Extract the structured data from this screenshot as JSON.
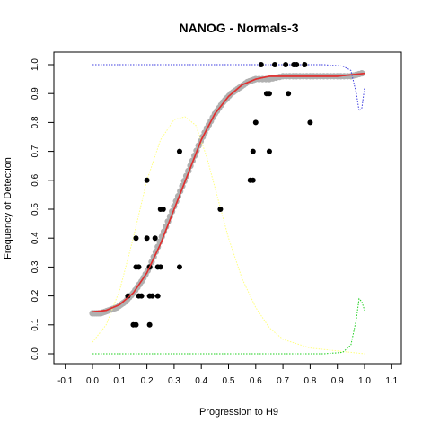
{
  "chart_data": {
    "type": "scatter",
    "title": "NANOG - Normals-3",
    "xlabel": "Progression to H9",
    "ylabel": "Frequency of Detection",
    "xlim": [
      -0.1,
      1.1
    ],
    "ylim": [
      0.0,
      1.0
    ],
    "x_ticks": [
      "-0.1",
      "0.0",
      "0.1",
      "0.2",
      "0.3",
      "0.4",
      "0.5",
      "0.6",
      "0.7",
      "0.8",
      "0.9",
      "1.0",
      "1.1"
    ],
    "y_ticks": [
      "0.0",
      "0.1",
      "0.2",
      "0.3",
      "0.4",
      "0.5",
      "0.6",
      "0.7",
      "0.8",
      "0.9",
      "1.0"
    ],
    "grid": false,
    "colors": {
      "points": "#000000",
      "smoothed_points": "#b0b0b0",
      "fit_line": "#e03030",
      "density_yellow": "#ffff80",
      "density_blue": "#4040e0",
      "density_green": "#20d020"
    },
    "series": [
      {
        "type": "scatter",
        "color": "#000000",
        "points": [
          [
            0.15,
            0.1
          ],
          [
            0.16,
            0.1
          ],
          [
            0.21,
            0.1
          ],
          [
            0.13,
            0.2
          ],
          [
            0.17,
            0.2
          ],
          [
            0.18,
            0.2
          ],
          [
            0.21,
            0.2
          ],
          [
            0.22,
            0.2
          ],
          [
            0.24,
            0.2
          ],
          [
            0.16,
            0.3
          ],
          [
            0.17,
            0.3
          ],
          [
            0.21,
            0.3
          ],
          [
            0.24,
            0.3
          ],
          [
            0.25,
            0.3
          ],
          [
            0.32,
            0.3
          ],
          [
            0.16,
            0.4
          ],
          [
            0.2,
            0.4
          ],
          [
            0.23,
            0.4
          ],
          [
            0.25,
            0.5
          ],
          [
            0.26,
            0.5
          ],
          [
            0.47,
            0.5
          ],
          [
            0.2,
            0.6
          ],
          [
            0.58,
            0.6
          ],
          [
            0.59,
            0.6
          ],
          [
            0.32,
            0.7
          ],
          [
            0.59,
            0.7
          ],
          [
            0.65,
            0.7
          ],
          [
            0.6,
            0.8
          ],
          [
            0.8,
            0.8
          ],
          [
            0.64,
            0.9
          ],
          [
            0.65,
            0.9
          ],
          [
            0.72,
            0.9
          ],
          [
            0.62,
            1.0
          ],
          [
            0.67,
            1.0
          ],
          [
            0.71,
            1.0
          ],
          [
            0.74,
            1.0
          ],
          [
            0.75,
            1.0
          ],
          [
            0.78,
            1.0
          ]
        ]
      },
      {
        "type": "smoothed",
        "color": "#b0b0b0",
        "points": [
          [
            0.0,
            0.14
          ],
          [
            0.03,
            0.14
          ],
          [
            0.06,
            0.15
          ],
          [
            0.09,
            0.16
          ],
          [
            0.12,
            0.18
          ],
          [
            0.15,
            0.21
          ],
          [
            0.18,
            0.25
          ],
          [
            0.21,
            0.3
          ],
          [
            0.24,
            0.37
          ],
          [
            0.27,
            0.44
          ],
          [
            0.3,
            0.51
          ],
          [
            0.33,
            0.58
          ],
          [
            0.36,
            0.65
          ],
          [
            0.39,
            0.72
          ],
          [
            0.42,
            0.78
          ],
          [
            0.45,
            0.83
          ],
          [
            0.48,
            0.87
          ],
          [
            0.51,
            0.9
          ],
          [
            0.54,
            0.92
          ],
          [
            0.57,
            0.94
          ],
          [
            0.6,
            0.95
          ],
          [
            0.65,
            0.95
          ],
          [
            0.7,
            0.96
          ],
          [
            0.75,
            0.96
          ],
          [
            0.8,
            0.96
          ],
          [
            0.85,
            0.96
          ],
          [
            0.9,
            0.96
          ],
          [
            0.95,
            0.96
          ],
          [
            0.99,
            0.97
          ]
        ]
      },
      {
        "type": "line",
        "color": "#e03030",
        "points": [
          [
            0.0,
            0.145
          ],
          [
            0.05,
            0.15
          ],
          [
            0.1,
            0.17
          ],
          [
            0.15,
            0.21
          ],
          [
            0.2,
            0.28
          ],
          [
            0.25,
            0.38
          ],
          [
            0.3,
            0.5
          ],
          [
            0.35,
            0.62
          ],
          [
            0.4,
            0.74
          ],
          [
            0.45,
            0.83
          ],
          [
            0.5,
            0.89
          ],
          [
            0.55,
            0.93
          ],
          [
            0.6,
            0.95
          ],
          [
            0.65,
            0.96
          ],
          [
            0.7,
            0.96
          ],
          [
            0.8,
            0.96
          ],
          [
            0.9,
            0.96
          ],
          [
            0.95,
            0.965
          ],
          [
            1.0,
            0.97
          ]
        ]
      },
      {
        "type": "line",
        "color": "#ffff80",
        "points": [
          [
            0.0,
            0.04
          ],
          [
            0.05,
            0.1
          ],
          [
            0.1,
            0.22
          ],
          [
            0.15,
            0.4
          ],
          [
            0.2,
            0.6
          ],
          [
            0.25,
            0.74
          ],
          [
            0.3,
            0.81
          ],
          [
            0.34,
            0.82
          ],
          [
            0.38,
            0.79
          ],
          [
            0.42,
            0.68
          ],
          [
            0.46,
            0.54
          ],
          [
            0.5,
            0.4
          ],
          [
            0.55,
            0.26
          ],
          [
            0.6,
            0.16
          ],
          [
            0.65,
            0.09
          ],
          [
            0.7,
            0.05
          ],
          [
            0.8,
            0.02
          ],
          [
            0.9,
            0.01
          ],
          [
            1.0,
            0.0
          ]
        ]
      },
      {
        "type": "line",
        "color": "#4040e0",
        "points": [
          [
            0.0,
            1.0
          ],
          [
            0.3,
            1.0
          ],
          [
            0.5,
            1.0
          ],
          [
            0.7,
            1.0
          ],
          [
            0.85,
            1.0
          ],
          [
            0.92,
            0.995
          ],
          [
            0.95,
            0.98
          ],
          [
            0.97,
            0.9
          ],
          [
            0.98,
            0.84
          ],
          [
            0.99,
            0.85
          ],
          [
            1.0,
            0.92
          ]
        ]
      },
      {
        "type": "line",
        "color": "#20d020",
        "points": [
          [
            0.0,
            0.0
          ],
          [
            0.3,
            0.0
          ],
          [
            0.6,
            0.0
          ],
          [
            0.85,
            0.0
          ],
          [
            0.92,
            0.005
          ],
          [
            0.95,
            0.03
          ],
          [
            0.97,
            0.12
          ],
          [
            0.98,
            0.19
          ],
          [
            0.99,
            0.18
          ],
          [
            1.0,
            0.15
          ]
        ]
      }
    ]
  }
}
